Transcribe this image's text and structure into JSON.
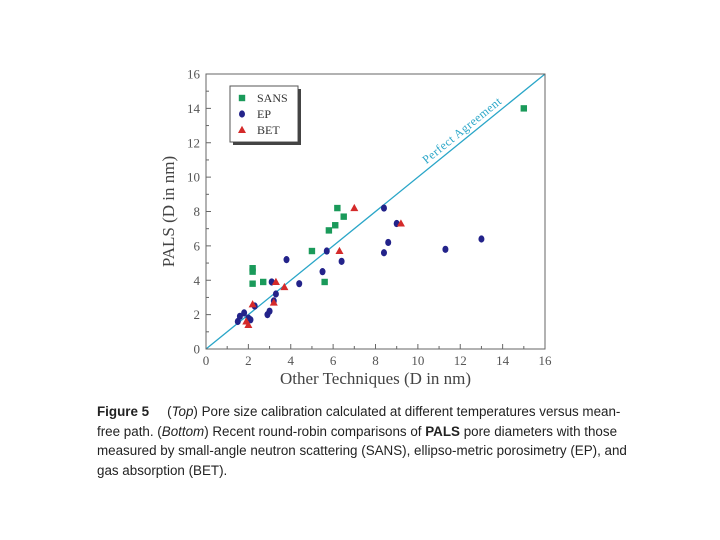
{
  "chart_data": {
    "type": "scatter",
    "xlabel": "Other Techniques (D in nm)",
    "ylabel": "PALS (D in nm)",
    "xlim": [
      0,
      16
    ],
    "ylim": [
      0,
      16
    ],
    "x_ticks": [
      "0",
      "2",
      "4",
      "6",
      "8",
      "10",
      "12",
      "14",
      "16"
    ],
    "y_ticks": [
      "0",
      "2",
      "4",
      "6",
      "8",
      "10",
      "12",
      "14",
      "16"
    ],
    "grid": false,
    "legend_position": "top-left",
    "reference_line": {
      "label": "Perfect Agreement",
      "color": "#2aa6c8",
      "from": [
        0,
        0
      ],
      "to": [
        16,
        16
      ]
    },
    "series": [
      {
        "name": "SANS",
        "marker": "square",
        "color": "#1a9a5a",
        "points": [
          [
            2.2,
            3.8
          ],
          [
            2.2,
            4.5
          ],
          [
            2.2,
            4.7
          ],
          [
            2.7,
            3.9
          ],
          [
            5.0,
            5.7
          ],
          [
            5.6,
            3.9
          ],
          [
            5.8,
            6.9
          ],
          [
            6.1,
            7.2
          ],
          [
            6.2,
            8.2
          ],
          [
            6.5,
            7.7
          ],
          [
            15.0,
            14.0
          ]
        ]
      },
      {
        "name": "EP",
        "marker": "circle",
        "color": "#23238a",
        "points": [
          [
            1.5,
            1.6
          ],
          [
            1.6,
            1.9
          ],
          [
            1.8,
            2.1
          ],
          [
            2.0,
            1.8
          ],
          [
            2.1,
            1.7
          ],
          [
            2.3,
            2.5
          ],
          [
            2.9,
            2.0
          ],
          [
            3.0,
            2.2
          ],
          [
            3.1,
            3.9
          ],
          [
            3.2,
            2.8
          ],
          [
            3.3,
            3.2
          ],
          [
            3.8,
            5.2
          ],
          [
            4.4,
            3.8
          ],
          [
            5.5,
            4.5
          ],
          [
            5.7,
            5.7
          ],
          [
            6.4,
            5.1
          ],
          [
            8.4,
            5.6
          ],
          [
            8.4,
            8.2
          ],
          [
            8.6,
            6.2
          ],
          [
            9.0,
            7.3
          ],
          [
            11.3,
            5.8
          ],
          [
            13.0,
            6.4
          ]
        ]
      },
      {
        "name": "BET",
        "marker": "triangle",
        "color": "#d42a2a",
        "points": [
          [
            1.9,
            1.6
          ],
          [
            2.0,
            1.4
          ],
          [
            2.2,
            2.6
          ],
          [
            3.2,
            2.7
          ],
          [
            3.3,
            3.9
          ],
          [
            3.7,
            3.6
          ],
          [
            6.3,
            5.7
          ],
          [
            7.0,
            8.2
          ],
          [
            9.2,
            7.3
          ]
        ]
      }
    ]
  },
  "caption": {
    "label": "Figure 5",
    "paren_open": "(",
    "top": "Top",
    "text1": ") Pore size calibration calculated at different temperatures versus mean-free path. (",
    "bottom": "Bottom",
    "text2": ") Recent round-robin comparisons of ",
    "bold_term": "PALS",
    "text3": " pore diameters with those measured by small-angle neutron scattering (SANS), ellipso-metric porosimetry (EP), and gas absorption (BET)."
  }
}
